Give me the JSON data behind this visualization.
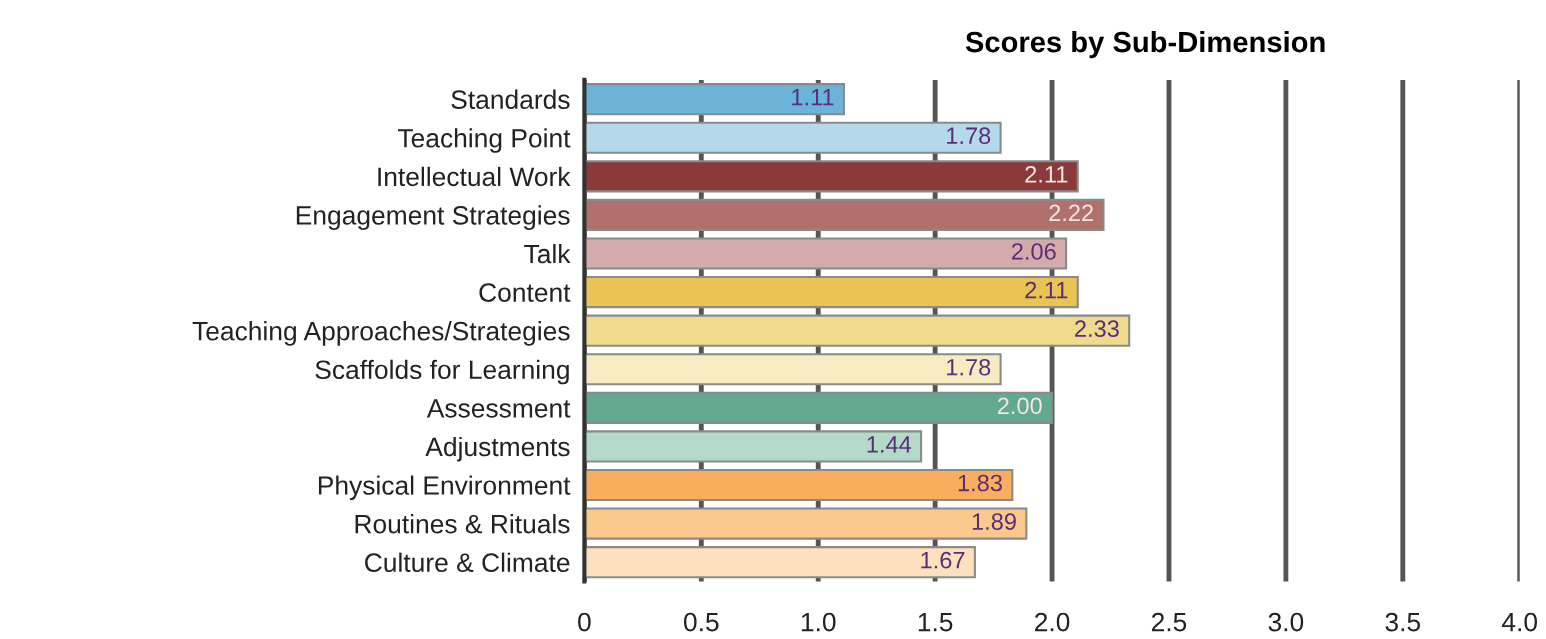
{
  "chart_data": {
    "type": "bar",
    "orientation": "horizontal",
    "title": "Scores by Sub-Dimension",
    "categories": [
      "Standards",
      "Teaching Point",
      "Intellectual Work",
      "Engagement Strategies",
      "Talk",
      "Content",
      "Teaching Approaches/Strategies",
      "Scaffolds for Learning",
      "Assessment",
      "Adjustments",
      "Physical Environment",
      "Routines & Rituals",
      "Culture & Climate"
    ],
    "values": [
      1.11,
      1.78,
      2.11,
      2.22,
      2.06,
      2.11,
      2.33,
      1.78,
      2.0,
      1.44,
      1.83,
      1.89,
      1.67
    ],
    "value_labels": [
      "1.11",
      "1.78",
      "2.11",
      "2.22",
      "2.06",
      "2.11",
      "2.33",
      "1.78",
      "2.00",
      "1.44",
      "1.83",
      "1.89",
      "1.67"
    ],
    "colors": [
      "#6bb4d8",
      "#b4d9ea",
      "#8b3a3a",
      "#b0706b",
      "#d4abab",
      "#e9c452",
      "#f0da8c",
      "#f7ebc2",
      "#62a98f",
      "#b3d9c9",
      "#f9ae5e",
      "#fbc98c",
      "#fde0bd"
    ],
    "xlim": [
      0,
      4.0
    ],
    "xticks": [
      0,
      0.5,
      {
        "value": 1,
        "label": "1.0"
      },
      1.5,
      {
        "value": 2,
        "label": "2.0"
      },
      2.5,
      {
        "value": 3,
        "label": "3.0"
      },
      3.5,
      {
        "value": 4,
        "label": "4.0"
      }
    ],
    "grid": "x"
  }
}
